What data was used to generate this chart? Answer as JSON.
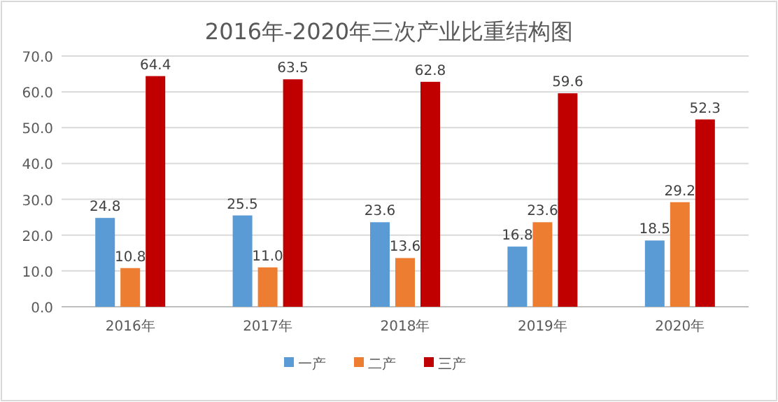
{
  "chart_data": {
    "type": "bar",
    "title": "2016年-2020年三次产业比重结构图",
    "categories": [
      "2016年",
      "2017年",
      "2018年",
      "2019年",
      "2020年"
    ],
    "series": [
      {
        "name": "一产",
        "color": "#5b9bd5",
        "values": [
          24.8,
          25.5,
          23.6,
          16.8,
          18.5
        ],
        "value_labels": [
          "24.8",
          "25.5",
          "23.6",
          "16.8",
          "18.5"
        ]
      },
      {
        "name": "二产",
        "color": "#ed7d31",
        "values": [
          10.8,
          11.0,
          13.6,
          23.6,
          29.2
        ],
        "value_labels": [
          "10.8",
          "11.0",
          "13.6",
          "23.6",
          "29.2"
        ]
      },
      {
        "name": "三产",
        "color": "#c00000",
        "values": [
          64.4,
          63.5,
          62.8,
          59.6,
          52.3
        ],
        "value_labels": [
          "64.4",
          "63.5",
          "62.8",
          "59.6",
          "52.3"
        ]
      }
    ],
    "ylim": [
      0,
      70
    ],
    "yticks": [
      {
        "value": 0,
        "label": "0.0"
      },
      {
        "value": 10,
        "label": "10.0"
      },
      {
        "value": 20,
        "label": "20.0"
      },
      {
        "value": 30,
        "label": "30.0"
      },
      {
        "value": 40,
        "label": "40.0"
      },
      {
        "value": 50,
        "label": "50.0"
      },
      {
        "value": 60,
        "label": "60.0"
      },
      {
        "value": 70,
        "label": "70.0"
      }
    ],
    "grid": "y",
    "legend": "bottom"
  }
}
